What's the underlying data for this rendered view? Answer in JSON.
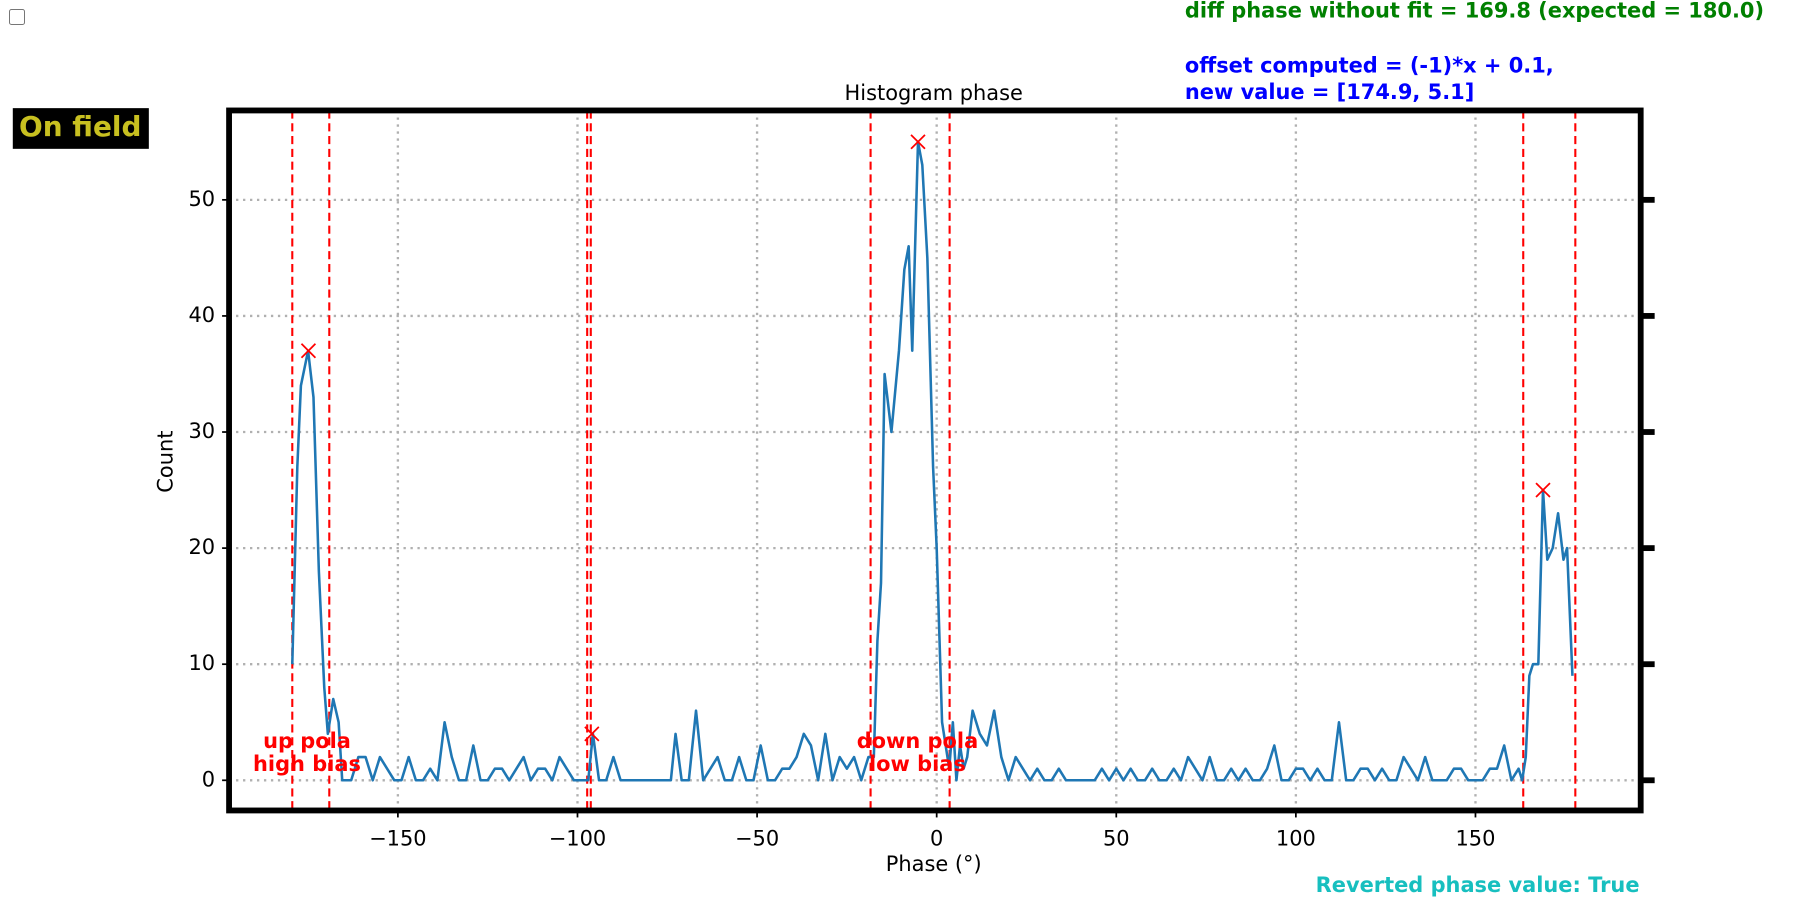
{
  "chart_data": {
    "type": "line",
    "title": "Histogram phase",
    "xlabel": "Phase (°)",
    "ylabel": "Count",
    "badge": "On field",
    "info_green": "diff phase without fit = 169.8 (expected = 180.0)",
    "info_blue": [
      "offset computed = (-1)*x + 0.1,",
      "new value = [174.9, 5.1]"
    ],
    "footer": "Reverted phase value: True",
    "labels": [
      [
        "up pola",
        "high bias"
      ],
      [
        "down pola",
        "low bias"
      ]
    ],
    "xlim": [
      -197,
      196
    ],
    "ylim": [
      -2.6,
      57.7
    ],
    "xticks": [
      {
        "value": -150,
        "label": "−150"
      },
      {
        "value": -100,
        "label": "−100"
      },
      {
        "value": -50,
        "label": "−50"
      },
      0,
      50,
      100,
      150
    ],
    "yticks": [
      0,
      10,
      20,
      30,
      40,
      50
    ],
    "grid": true,
    "vlines": [
      -179.4,
      -169.1,
      -97.3,
      -96.3,
      -18.4,
      3.6,
      163.3,
      177.8
    ],
    "vline_color": "#ff0000",
    "series": [
      {
        "color": "#1f77b4",
        "x": [
          -179.4,
          -178,
          -177,
          -175,
          -173.5,
          -172,
          -170.5,
          -169.5,
          -168,
          -166.5,
          -165.5,
          -163,
          -161,
          -159,
          -157,
          -155,
          -153,
          -151,
          -149,
          -147,
          -145,
          -143,
          -141,
          -139,
          -137,
          -135,
          -133,
          -131,
          -129,
          -127,
          -125,
          -123,
          -121,
          -119,
          -117,
          -115,
          -113,
          -111,
          -109,
          -107,
          -105,
          -103,
          -101,
          -99,
          -97,
          -95.7,
          -94,
          -92,
          -90,
          -88,
          -86,
          -84,
          -82,
          -80,
          -78,
          -76,
          -74,
          -72.7,
          -71,
          -69,
          -67,
          -65,
          -63,
          -61,
          -59,
          -57,
          -55,
          -53,
          -51,
          -49,
          -47,
          -45,
          -43,
          -41,
          -39,
          -37,
          -35,
          -33,
          -31,
          -29,
          -27,
          -25,
          -23,
          -21,
          -19,
          -17.5,
          -16.5,
          -15.5,
          -14.5,
          -12.6,
          -10.5,
          -9,
          -7.8,
          -6.8,
          -5.2,
          -4,
          -2.6,
          -1,
          0,
          1.5,
          2.5,
          3.5,
          4.5,
          5.5,
          6.5,
          7.5,
          8.5,
          10,
          12,
          14,
          16,
          18,
          20,
          22,
          24,
          26,
          28,
          30,
          32,
          34,
          36,
          38,
          40,
          42,
          44,
          46,
          48,
          50,
          52,
          54,
          56,
          58,
          60,
          62,
          64,
          66,
          68,
          70,
          72,
          74,
          76,
          78,
          80,
          82,
          84,
          86,
          88,
          90,
          92,
          94,
          96,
          98,
          100,
          102,
          104,
          106,
          108,
          110,
          112,
          114,
          116,
          118,
          120,
          122,
          124,
          126,
          128,
          130,
          132,
          134,
          136,
          138,
          140,
          142,
          144,
          146,
          148,
          150,
          152,
          154,
          156,
          158,
          160,
          162,
          163,
          164,
          165,
          166,
          167.5,
          168.8,
          170,
          171.5,
          173,
          174.5,
          175.5,
          177
        ],
        "values": [
          10,
          27,
          34,
          37,
          33,
          18,
          8,
          4,
          7,
          5,
          0,
          0,
          2,
          2,
          0,
          2,
          1,
          0,
          0,
          2,
          0,
          0,
          1,
          0,
          5,
          2,
          0,
          0,
          3,
          0,
          0,
          1,
          1,
          0,
          1,
          2,
          0,
          1,
          1,
          0,
          2,
          1,
          0,
          0,
          0,
          4,
          0,
          0,
          2,
          0,
          0,
          0,
          0,
          0,
          0,
          0,
          0,
          4,
          0,
          0,
          6,
          0,
          1,
          2,
          0,
          0,
          2,
          0,
          0,
          3,
          0,
          0,
          1,
          1,
          2,
          4,
          3,
          0,
          4,
          0,
          2,
          1,
          2,
          0,
          2,
          2,
          12,
          17,
          35,
          30,
          37,
          44,
          46,
          37,
          55,
          53,
          45,
          27,
          20,
          5,
          3,
          1,
          5,
          0,
          3,
          1,
          2,
          6,
          4,
          3,
          6,
          2,
          0,
          2,
          1,
          0,
          1,
          0,
          0,
          1,
          0,
          0,
          0,
          0,
          0,
          1,
          0,
          1,
          0,
          1,
          0,
          0,
          1,
          0,
          0,
          1,
          0,
          2,
          1,
          0,
          2,
          0,
          0,
          1,
          0,
          1,
          0,
          0,
          1,
          3,
          0,
          0,
          1,
          1,
          0,
          1,
          0,
          0,
          5,
          0,
          0,
          1,
          1,
          0,
          1,
          0,
          0,
          2,
          1,
          0,
          2,
          0,
          0,
          0,
          1,
          1,
          0,
          0,
          0,
          1,
          1,
          3,
          0,
          1,
          0,
          2,
          9,
          10,
          10,
          25,
          19,
          20,
          23,
          19,
          20,
          9
        ]
      },
      {
        "type": "scatter",
        "color": "#ff0000",
        "x": [
          -174.9,
          -96,
          -5.2,
          168.8
        ],
        "values": [
          37,
          4,
          55,
          25
        ]
      }
    ]
  }
}
